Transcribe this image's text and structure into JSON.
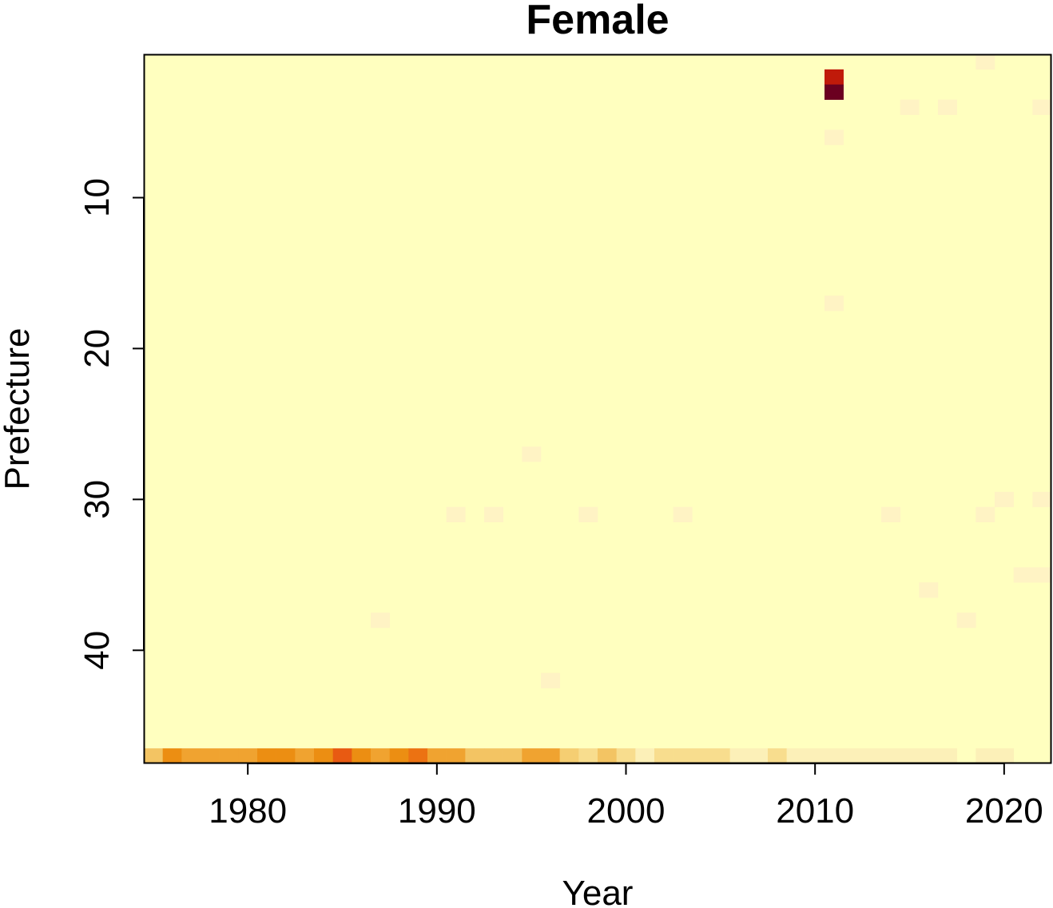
{
  "chart_data": {
    "type": "heatmap",
    "title": "Female",
    "xlabel": "Year",
    "ylabel": "Prefecture",
    "x": [
      1975,
      1976,
      1977,
      1978,
      1979,
      1980,
      1981,
      1982,
      1983,
      1984,
      1985,
      1986,
      1987,
      1988,
      1989,
      1990,
      1991,
      1992,
      1993,
      1994,
      1995,
      1996,
      1997,
      1998,
      1999,
      2000,
      2001,
      2002,
      2003,
      2004,
      2005,
      2006,
      2007,
      2008,
      2009,
      2010,
      2011,
      2012,
      2013,
      2014,
      2015,
      2016,
      2017,
      2018,
      2019,
      2020,
      2021,
      2022
    ],
    "y_range": [
      1,
      47
    ],
    "xlim": [
      1974.5,
      2022.5
    ],
    "ylim": [
      0.5,
      47.5
    ],
    "y_reversed": true,
    "xticks": [
      1980,
      1990,
      2000,
      2010,
      2020
    ],
    "yticks": [
      10,
      20,
      30,
      40
    ],
    "background_color": "#FFFFBF",
    "cells": [
      {
        "x": 2019,
        "y": 1,
        "color": "#FFF3C4"
      },
      {
        "x": 2011,
        "y": 2,
        "color": "#C01A0A"
      },
      {
        "x": 2011,
        "y": 3,
        "color": "#6B0020"
      },
      {
        "x": 2015,
        "y": 4,
        "color": "#FFF3C4"
      },
      {
        "x": 2017,
        "y": 4,
        "color": "#FFF3C4"
      },
      {
        "x": 2022,
        "y": 4,
        "color": "#FFF3C4"
      },
      {
        "x": 2011,
        "y": 6,
        "color": "#FFF3C4"
      },
      {
        "x": 2011,
        "y": 17,
        "color": "#FFF3C4"
      },
      {
        "x": 1995,
        "y": 27,
        "color": "#FFF3C4"
      },
      {
        "x": 2020,
        "y": 30,
        "color": "#FFF3C4"
      },
      {
        "x": 2022,
        "y": 30,
        "color": "#FFF3C4"
      },
      {
        "x": 1991,
        "y": 31,
        "color": "#FFF3C4"
      },
      {
        "x": 1993,
        "y": 31,
        "color": "#FFF3C4"
      },
      {
        "x": 1998,
        "y": 31,
        "color": "#FFF3C4"
      },
      {
        "x": 2003,
        "y": 31,
        "color": "#FFF3C4"
      },
      {
        "x": 2014,
        "y": 31,
        "color": "#FFF3C4"
      },
      {
        "x": 2019,
        "y": 31,
        "color": "#FFF3C4"
      },
      {
        "x": 2021,
        "y": 35,
        "color": "#FFF3C4"
      },
      {
        "x": 2022,
        "y": 35,
        "color": "#FFF3C4"
      },
      {
        "x": 2016,
        "y": 36,
        "color": "#FFF3C4"
      },
      {
        "x": 1987,
        "y": 38,
        "color": "#FFF3C4"
      },
      {
        "x": 2018,
        "y": 38,
        "color": "#FFF3C4"
      },
      {
        "x": 1996,
        "y": 42,
        "color": "#FFF3C4"
      },
      {
        "x": 1975,
        "y": 47,
        "color": "#F3C463"
      },
      {
        "x": 1976,
        "y": 47,
        "color": "#EC8E12"
      },
      {
        "x": 1977,
        "y": 47,
        "color": "#F0A330"
      },
      {
        "x": 1978,
        "y": 47,
        "color": "#F0A330"
      },
      {
        "x": 1979,
        "y": 47,
        "color": "#F0A330"
      },
      {
        "x": 1980,
        "y": 47,
        "color": "#F0A330"
      },
      {
        "x": 1981,
        "y": 47,
        "color": "#EC8E12"
      },
      {
        "x": 1982,
        "y": 47,
        "color": "#EC8E12"
      },
      {
        "x": 1983,
        "y": 47,
        "color": "#F0A330"
      },
      {
        "x": 1984,
        "y": 47,
        "color": "#EC8E12"
      },
      {
        "x": 1985,
        "y": 47,
        "color": "#E85A12"
      },
      {
        "x": 1986,
        "y": 47,
        "color": "#EC8E12"
      },
      {
        "x": 1987,
        "y": 47,
        "color": "#F0A330"
      },
      {
        "x": 1988,
        "y": 47,
        "color": "#EC8E12"
      },
      {
        "x": 1989,
        "y": 47,
        "color": "#EC7212"
      },
      {
        "x": 1990,
        "y": 47,
        "color": "#F0A330"
      },
      {
        "x": 1991,
        "y": 47,
        "color": "#F0A330"
      },
      {
        "x": 1992,
        "y": 47,
        "color": "#F3C463"
      },
      {
        "x": 1993,
        "y": 47,
        "color": "#F3C463"
      },
      {
        "x": 1994,
        "y": 47,
        "color": "#F3C463"
      },
      {
        "x": 1995,
        "y": 47,
        "color": "#F0A330"
      },
      {
        "x": 1996,
        "y": 47,
        "color": "#F0A330"
      },
      {
        "x": 1997,
        "y": 47,
        "color": "#F5CE72"
      },
      {
        "x": 1998,
        "y": 47,
        "color": "#F8DD8E"
      },
      {
        "x": 1999,
        "y": 47,
        "color": "#F3C463"
      },
      {
        "x": 2000,
        "y": 47,
        "color": "#F8DD8E"
      },
      {
        "x": 2001,
        "y": 47,
        "color": "#FCF0B8"
      },
      {
        "x": 2002,
        "y": 47,
        "color": "#F8DD8E"
      },
      {
        "x": 2003,
        "y": 47,
        "color": "#F8DD8E"
      },
      {
        "x": 2004,
        "y": 47,
        "color": "#F8DD8E"
      },
      {
        "x": 2005,
        "y": 47,
        "color": "#F8DD8E"
      },
      {
        "x": 2006,
        "y": 47,
        "color": "#FCF0B8"
      },
      {
        "x": 2007,
        "y": 47,
        "color": "#FCF0B8"
      },
      {
        "x": 2008,
        "y": 47,
        "color": "#F8DD8E"
      },
      {
        "x": 2009,
        "y": 47,
        "color": "#FCF0B8"
      },
      {
        "x": 2010,
        "y": 47,
        "color": "#FCF0B8"
      },
      {
        "x": 2011,
        "y": 47,
        "color": "#FCF0B8"
      },
      {
        "x": 2012,
        "y": 47,
        "color": "#FCF0B8"
      },
      {
        "x": 2013,
        "y": 47,
        "color": "#FCF0B8"
      },
      {
        "x": 2014,
        "y": 47,
        "color": "#FCF0B8"
      },
      {
        "x": 2015,
        "y": 47,
        "color": "#FCF0B8"
      },
      {
        "x": 2016,
        "y": 47,
        "color": "#FCF0B8"
      },
      {
        "x": 2017,
        "y": 47,
        "color": "#FCF0B8"
      },
      {
        "x": 2019,
        "y": 47,
        "color": "#FCF0B8"
      },
      {
        "x": 2020,
        "y": 47,
        "color": "#FCF0B8"
      }
    ]
  }
}
